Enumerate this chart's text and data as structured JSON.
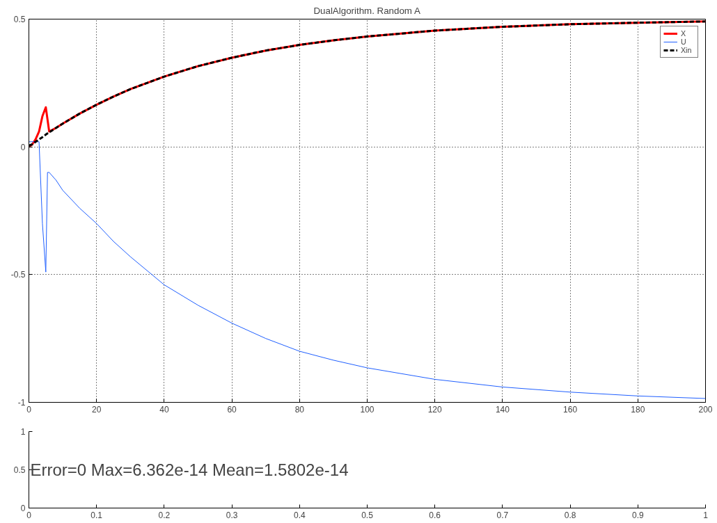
{
  "chart_data": [
    {
      "type": "line",
      "title": "DualAlgorithm. Random A",
      "xlim": [
        0,
        200
      ],
      "ylim": [
        -1,
        0.5
      ],
      "xticks": [
        0,
        20,
        40,
        60,
        80,
        100,
        120,
        140,
        160,
        180,
        200
      ],
      "yticks": [
        -1,
        -0.5,
        0,
        0.5
      ],
      "grid": true,
      "legend": "top right",
      "series": [
        {
          "name": "X",
          "color": "#ff0000",
          "line_style": "solid",
          "x": [
            0,
            1,
            2,
            3,
            4,
            5,
            6,
            8,
            10,
            15,
            20,
            25,
            30,
            40,
            50,
            60,
            70,
            80,
            90,
            100,
            120,
            140,
            160,
            180,
            200
          ],
          "values": [
            0,
            0.01,
            0.03,
            0.06,
            0.12,
            0.155,
            0.06,
            0.074,
            0.091,
            0.13,
            0.165,
            0.197,
            0.226,
            0.275,
            0.316,
            0.349,
            0.377,
            0.399,
            0.417,
            0.432,
            0.455,
            0.47,
            0.48,
            0.486,
            0.491
          ]
        },
        {
          "name": "U",
          "color": "#1f5fff",
          "line_style": "solid",
          "x": [
            0,
            3,
            4,
            5,
            5.5,
            6,
            8,
            10,
            15,
            20,
            25,
            30,
            40,
            50,
            60,
            70,
            80,
            90,
            100,
            120,
            140,
            160,
            180,
            200
          ],
          "values": [
            0.02,
            0.02,
            -0.3,
            -0.49,
            -0.1,
            -0.1,
            -0.13,
            -0.17,
            -0.24,
            -0.3,
            -0.37,
            -0.43,
            -0.54,
            -0.62,
            -0.69,
            -0.75,
            -0.8,
            -0.835,
            -0.865,
            -0.91,
            -0.94,
            -0.96,
            -0.975,
            -0.985
          ]
        },
        {
          "name": "Xin",
          "color": "#000000",
          "line_style": "dashed",
          "x": [
            0,
            1,
            2,
            3,
            4,
            5,
            6,
            8,
            10,
            15,
            20,
            25,
            30,
            40,
            50,
            60,
            70,
            80,
            90,
            100,
            120,
            140,
            160,
            180,
            200
          ],
          "values": [
            0.005,
            0.01,
            0.02,
            0.029,
            0.038,
            0.048,
            0.057,
            0.074,
            0.091,
            0.13,
            0.165,
            0.197,
            0.226,
            0.275,
            0.316,
            0.349,
            0.377,
            0.399,
            0.417,
            0.432,
            0.455,
            0.47,
            0.48,
            0.486,
            0.491
          ]
        }
      ]
    },
    {
      "type": "line",
      "xlim": [
        0,
        1
      ],
      "ylim": [
        0,
        1
      ],
      "xticks": [
        0,
        0.1,
        0.2,
        0.3,
        0.4,
        0.5,
        0.6,
        0.7,
        0.8,
        0.9,
        1
      ],
      "yticks": [
        0,
        0.5,
        1
      ],
      "annotations": [
        "Error=0 Max=6.362e-14 Mean=1.5802e-14"
      ]
    }
  ]
}
